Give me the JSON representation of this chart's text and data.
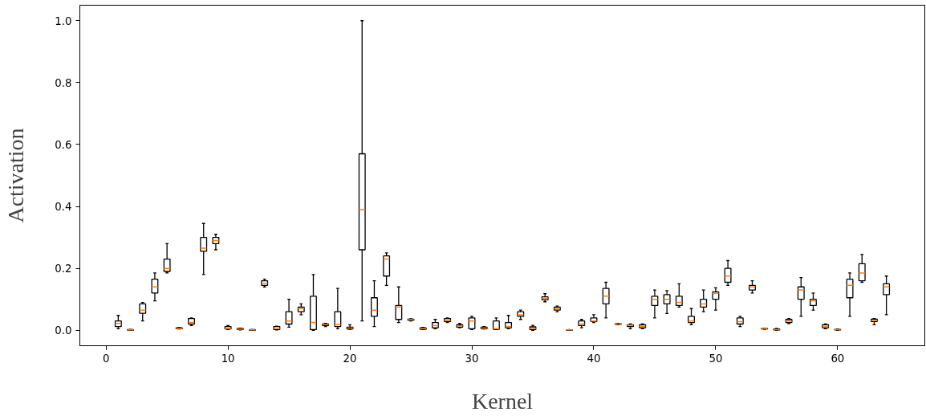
{
  "chart_data": {
    "type": "box",
    "xlabel": "Kernel",
    "ylabel": "Activation",
    "x": [
      1,
      2,
      3,
      4,
      5,
      6,
      7,
      8,
      9,
      10,
      11,
      12,
      13,
      14,
      15,
      16,
      17,
      18,
      19,
      20,
      21,
      22,
      23,
      24,
      25,
      26,
      27,
      28,
      29,
      30,
      31,
      32,
      33,
      34,
      35,
      36,
      37,
      38,
      39,
      40,
      41,
      42,
      43,
      44,
      45,
      46,
      47,
      48,
      49,
      50,
      51,
      52,
      53,
      54,
      55,
      56,
      57,
      58,
      59,
      60,
      61,
      62,
      63,
      64
    ],
    "xlim": [
      -2.15,
      67.15
    ],
    "xticks": [
      0,
      10,
      20,
      30,
      40,
      50,
      60
    ],
    "ylim": [
      -0.05,
      1.05
    ],
    "yticks": [
      {
        "value": 0,
        "label": "0.0"
      },
      0.2,
      0.4,
      0.6,
      0.8,
      {
        "value": 1,
        "label": "1.0"
      }
    ],
    "grid": false,
    "series": [
      {
        "color": "#000000",
        "boxes": [
          {
            "low": 0.005,
            "q1": 0.012,
            "median": 0.022,
            "q3": 0.03,
            "high": 0.048
          },
          {
            "low": 0,
            "q1": 0,
            "median": 0.001,
            "q3": 0.002,
            "high": 0.003
          },
          {
            "low": 0.03,
            "q1": 0.055,
            "median": 0.065,
            "q3": 0.085,
            "high": 0.09
          },
          {
            "low": 0.095,
            "q1": 0.12,
            "median": 0.14,
            "q3": 0.165,
            "high": 0.185
          },
          {
            "low": 0.185,
            "q1": 0.19,
            "median": 0.2,
            "q3": 0.23,
            "high": 0.28
          },
          {
            "low": 0.004,
            "q1": 0.005,
            "median": 0.006,
            "q3": 0.008,
            "high": 0.009
          },
          {
            "low": 0.015,
            "q1": 0.02,
            "median": 0.025,
            "q3": 0.038,
            "high": 0.04
          },
          {
            "low": 0.18,
            "q1": 0.255,
            "median": 0.265,
            "q3": 0.3,
            "high": 0.345
          },
          {
            "low": 0.26,
            "q1": 0.28,
            "median": 0.29,
            "q3": 0.3,
            "high": 0.31
          },
          {
            "low": 0.002,
            "q1": 0.004,
            "median": 0.006,
            "q3": 0.012,
            "high": 0.015
          },
          {
            "low": 0.001,
            "q1": 0.002,
            "median": 0.004,
            "q3": 0.006,
            "high": 0.007
          },
          {
            "low": 0,
            "q1": 0,
            "median": 0.001,
            "q3": 0.002,
            "high": 0.002
          },
          {
            "low": 0.14,
            "q1": 0.145,
            "median": 0.152,
            "q3": 0.16,
            "high": 0.165
          },
          {
            "low": 0.001,
            "q1": 0.002,
            "median": 0.005,
            "q3": 0.012,
            "high": 0.013
          },
          {
            "low": 0.01,
            "q1": 0.02,
            "median": 0.03,
            "q3": 0.06,
            "high": 0.1
          },
          {
            "low": 0.05,
            "q1": 0.06,
            "median": 0.07,
            "q3": 0.075,
            "high": 0.085
          },
          {
            "low": 0,
            "q1": 0.002,
            "median": 0.025,
            "q3": 0.11,
            "high": 0.18
          },
          {
            "low": 0.012,
            "q1": 0.015,
            "median": 0.018,
            "q3": 0.02,
            "high": 0.022
          },
          {
            "low": 0.005,
            "q1": 0.012,
            "median": 0.018,
            "q3": 0.06,
            "high": 0.135
          },
          {
            "low": 0.003,
            "q1": 0.004,
            "median": 0.007,
            "q3": 0.01,
            "high": 0.018
          },
          {
            "low": 0.03,
            "q1": 0.26,
            "median": 0.39,
            "q3": 0.57,
            "high": 1.0
          },
          {
            "low": 0.012,
            "q1": 0.045,
            "median": 0.065,
            "q3": 0.105,
            "high": 0.16
          },
          {
            "low": 0.145,
            "q1": 0.175,
            "median": 0.23,
            "q3": 0.24,
            "high": 0.25
          },
          {
            "low": 0.025,
            "q1": 0.035,
            "median": 0.075,
            "q3": 0.08,
            "high": 0.14
          },
          {
            "low": 0.03,
            "q1": 0.032,
            "median": 0.034,
            "q3": 0.036,
            "high": 0.037
          },
          {
            "low": 0.002,
            "q1": 0.003,
            "median": 0.005,
            "q3": 0.008,
            "high": 0.009
          },
          {
            "low": 0.005,
            "q1": 0.008,
            "median": 0.015,
            "q3": 0.025,
            "high": 0.035
          },
          {
            "low": 0.025,
            "q1": 0.028,
            "median": 0.032,
            "q3": 0.038,
            "high": 0.04
          },
          {
            "low": 0.008,
            "q1": 0.01,
            "median": 0.014,
            "q3": 0.018,
            "high": 0.022
          },
          {
            "low": 0.002,
            "q1": 0.005,
            "median": 0.03,
            "q3": 0.04,
            "high": 0.045
          },
          {
            "low": 0.004,
            "q1": 0.005,
            "median": 0.007,
            "q3": 0.01,
            "high": 0.012
          },
          {
            "low": 0.002,
            "q1": 0.003,
            "median": 0.005,
            "q3": 0.03,
            "high": 0.04
          },
          {
            "low": 0.005,
            "q1": 0.008,
            "median": 0.012,
            "q3": 0.025,
            "high": 0.048
          },
          {
            "low": 0.035,
            "q1": 0.045,
            "median": 0.05,
            "q3": 0.06,
            "high": 0.065
          },
          {
            "low": 0,
            "q1": 0.002,
            "median": 0.006,
            "q3": 0.011,
            "high": 0.016
          },
          {
            "low": 0.092,
            "q1": 0.098,
            "median": 0.103,
            "q3": 0.108,
            "high": 0.118
          },
          {
            "low": 0.06,
            "q1": 0.065,
            "median": 0.07,
            "q3": 0.075,
            "high": 0.078
          },
          {
            "low": 0,
            "q1": 0,
            "median": 0.001,
            "q3": 0.001,
            "high": 0.002
          },
          {
            "low": 0.008,
            "q1": 0.015,
            "median": 0.02,
            "q3": 0.03,
            "high": 0.035
          },
          {
            "low": 0.025,
            "q1": 0.028,
            "median": 0.03,
            "q3": 0.04,
            "high": 0.05
          },
          {
            "low": 0.04,
            "q1": 0.085,
            "median": 0.11,
            "q3": 0.135,
            "high": 0.155
          },
          {
            "low": 0.018,
            "q1": 0.019,
            "median": 0.02,
            "q3": 0.021,
            "high": 0.022
          },
          {
            "low": 0.005,
            "q1": 0.012,
            "median": 0.016,
            "q3": 0.018,
            "high": 0.02
          },
          {
            "low": 0.005,
            "q1": 0.008,
            "median": 0.013,
            "q3": 0.018,
            "high": 0.02
          },
          {
            "low": 0.04,
            "q1": 0.08,
            "median": 0.1,
            "q3": 0.11,
            "high": 0.13
          },
          {
            "low": 0.054,
            "q1": 0.085,
            "median": 0.1,
            "q3": 0.115,
            "high": 0.128
          },
          {
            "low": 0.075,
            "q1": 0.08,
            "median": 0.09,
            "q3": 0.11,
            "high": 0.15
          },
          {
            "low": 0.018,
            "q1": 0.025,
            "median": 0.03,
            "q3": 0.045,
            "high": 0.07
          },
          {
            "low": 0.06,
            "q1": 0.075,
            "median": 0.085,
            "q3": 0.1,
            "high": 0.13
          },
          {
            "low": 0.065,
            "q1": 0.1,
            "median": 0.119,
            "q3": 0.124,
            "high": 0.137
          },
          {
            "low": 0.145,
            "q1": 0.155,
            "median": 0.175,
            "q3": 0.2,
            "high": 0.225
          },
          {
            "low": 0.012,
            "q1": 0.02,
            "median": 0.028,
            "q3": 0.04,
            "high": 0.045
          },
          {
            "low": 0.12,
            "q1": 0.13,
            "median": 0.14,
            "q3": 0.145,
            "high": 0.16
          },
          {
            "low": 0.003,
            "q1": 0.004,
            "median": 0.005,
            "q3": 0.006,
            "high": 0.007
          },
          {
            "low": 0,
            "q1": 0.001,
            "median": 0.002,
            "q3": 0.004,
            "high": 0.006
          },
          {
            "low": 0.022,
            "q1": 0.025,
            "median": 0.03,
            "q3": 0.035,
            "high": 0.038
          },
          {
            "low": 0.045,
            "q1": 0.1,
            "median": 0.13,
            "q3": 0.14,
            "high": 0.17
          },
          {
            "low": 0.065,
            "q1": 0.08,
            "median": 0.095,
            "q3": 0.1,
            "high": 0.12
          },
          {
            "low": 0.005,
            "q1": 0.008,
            "median": 0.012,
            "q3": 0.018,
            "high": 0.02
          },
          {
            "low": 0,
            "q1": 0.001,
            "median": 0.002,
            "q3": 0.003,
            "high": 0.004
          },
          {
            "low": 0.045,
            "q1": 0.105,
            "median": 0.145,
            "q3": 0.165,
            "high": 0.185
          },
          {
            "low": 0.155,
            "q1": 0.16,
            "median": 0.185,
            "q3": 0.215,
            "high": 0.245
          },
          {
            "low": 0.018,
            "q1": 0.028,
            "median": 0.032,
            "q3": 0.036,
            "high": 0.038
          },
          {
            "low": 0.05,
            "q1": 0.115,
            "median": 0.14,
            "q3": 0.15,
            "high": 0.175
          }
        ]
      }
    ]
  }
}
